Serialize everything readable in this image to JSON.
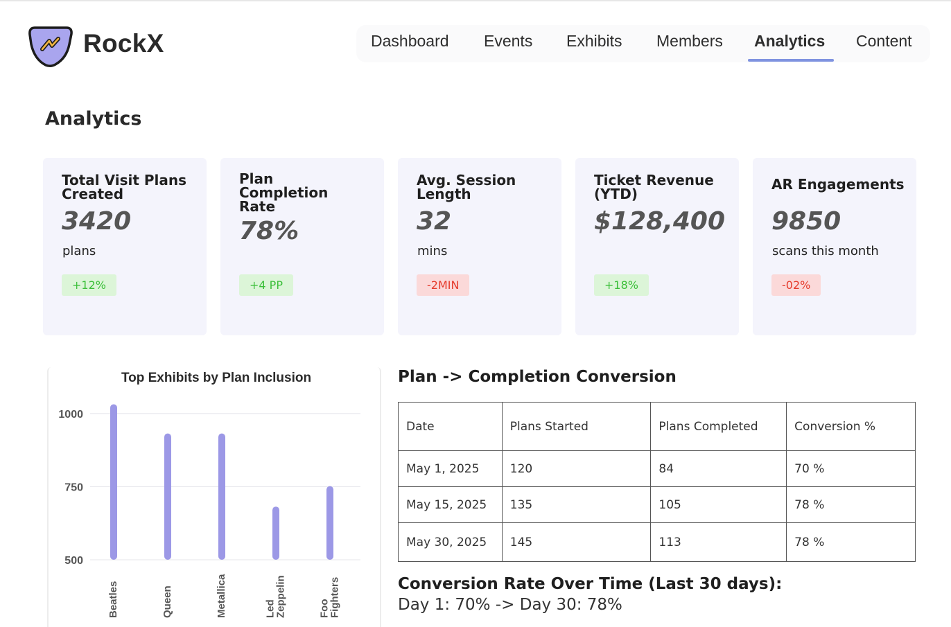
{
  "header": {
    "brand": "RockX",
    "nav": [
      {
        "label": "Dashboard"
      },
      {
        "label": "Events"
      },
      {
        "label": "Exhibits"
      },
      {
        "label": "Members"
      },
      {
        "label": "Analytics"
      },
      {
        "label": "Content"
      }
    ],
    "active_nav": "Analytics",
    "logo_icon": "lightning-pick-icon",
    "colors": {
      "logo_fill": "#a9a5ee",
      "accent_underline": "#7f93e0"
    }
  },
  "page": {
    "title": "Analytics"
  },
  "kpis": [
    {
      "title": "Total Visit Plans Created",
      "value": "3420",
      "unit": "plans",
      "delta": "+12%",
      "trend": "positive"
    },
    {
      "title": "Plan Completion Rate",
      "value": "78%",
      "unit": "",
      "delta": "+4 PP",
      "trend": "positive"
    },
    {
      "title": "Avg. Session Length",
      "value": "32",
      "unit": "mins",
      "delta": "-2MIN",
      "trend": "negative"
    },
    {
      "title": "Ticket Revenue (YTD)",
      "value": "$128,400",
      "unit": "",
      "delta": "+18%",
      "trend": "positive"
    },
    {
      "title": "AR Engagements",
      "value": "9850",
      "unit": "scans this month",
      "delta": "-02%",
      "trend": "negative"
    }
  ],
  "chart_data": {
    "type": "bar",
    "title": "Top Exhibits by Plan Inclusion",
    "categories": [
      "Beatles",
      "Queen",
      "Metallica",
      "Led Zeppelin",
      "Foo Fighters"
    ],
    "values": [
      1020,
      920,
      920,
      670,
      740
    ],
    "ylim": [
      500,
      1040
    ],
    "yticks": [
      500,
      750,
      1000
    ],
    "grid": true,
    "bar_color": "#9c98e6",
    "xlabel": "",
    "ylabel": ""
  },
  "conversion": {
    "title": "Plan -> Completion Conversion",
    "columns": [
      "Date",
      "Plans Started",
      "Plans Completed",
      "Conversion %"
    ],
    "rows": [
      [
        "May 1, 2025",
        "120",
        "84",
        "70 %"
      ],
      [
        "May 15, 2025",
        "135",
        "105",
        "78 %"
      ],
      [
        "May 30, 2025",
        "145",
        "113",
        "78 %"
      ]
    ]
  },
  "rate": {
    "title": "Conversion Rate Over Time (Last 30 days):",
    "text": "Day 1: 70% -> Day 30: 78%"
  }
}
